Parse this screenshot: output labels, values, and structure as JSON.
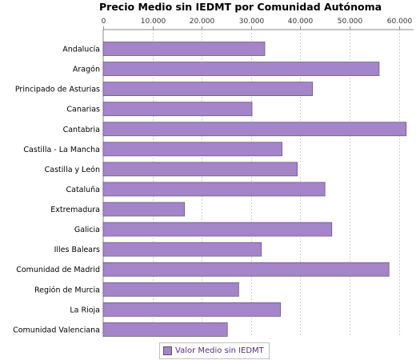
{
  "chart_data": {
    "type": "bar",
    "orientation": "horizontal",
    "title": "Precio Medio sin IEDMT por Comunidad Autónoma",
    "xlabel": "",
    "ylabel": "",
    "xlim": [
      0,
      63000
    ],
    "ticks": [
      0,
      10000,
      20000,
      30000,
      40000,
      50000,
      60000
    ],
    "tick_labels": [
      "0",
      "10.000",
      "20.000",
      "30.000",
      "40.000",
      "50.000",
      "60.000"
    ],
    "grid": true,
    "legend_position": "bottom",
    "bar_color": "#a485c9",
    "categories": [
      "Andalucía",
      "Aragón",
      "Principado de Asturias",
      "Canarias",
      "Cantabria",
      "Castilla - La Mancha",
      "Castilla y León",
      "Cataluña",
      "Extremadura",
      "Galicia",
      "Illes Balears",
      "Comunidad de Madrid",
      "Región de Murcia",
      "La Rioja",
      "Comunidad Valenciana"
    ],
    "series": [
      {
        "name": "Valor Medio sin IEDMT",
        "values": [
          32800,
          56000,
          42500,
          30200,
          61500,
          36300,
          39400,
          45000,
          16500,
          46400,
          32100,
          58000,
          27500,
          36000,
          25200
        ]
      }
    ]
  }
}
